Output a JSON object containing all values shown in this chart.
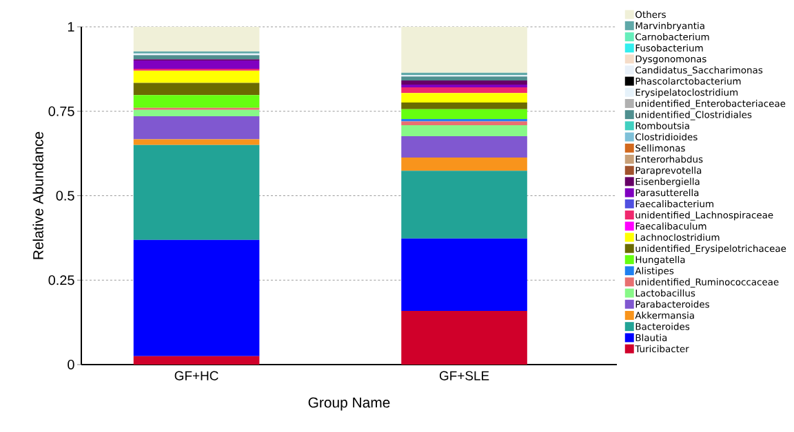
{
  "chart_data": {
    "type": "bar",
    "stacked": true,
    "xlabel": "Group Name",
    "ylabel": "Relative Abundance",
    "categories": [
      "GF+HC",
      "GF+SLE"
    ],
    "ylim": [
      0,
      1
    ],
    "yticks": [
      0,
      0.25,
      0.5,
      0.75,
      1
    ],
    "grid": "y",
    "legend": "right",
    "series": [
      {
        "name": "Turicibacter",
        "color": "#d0002a",
        "values": [
          0.025,
          0.159
        ]
      },
      {
        "name": "Blautia",
        "color": "#0000ff",
        "values": [
          0.344,
          0.214
        ]
      },
      {
        "name": "Bacteroides",
        "color": "#22a396",
        "values": [
          0.281,
          0.201
        ]
      },
      {
        "name": "Akkermansia",
        "color": "#f8941c",
        "values": [
          0.017,
          0.039
        ]
      },
      {
        "name": "Parabacteroides",
        "color": "#8058d0",
        "values": [
          0.068,
          0.063
        ]
      },
      {
        "name": "Lactobacillus",
        "color": "#88f888",
        "values": [
          0.019,
          0.033
        ]
      },
      {
        "name": "unidentified_Ruminococcaceae",
        "color": "#e87070",
        "values": [
          0.006,
          0.011
        ]
      },
      {
        "name": "Alistipes",
        "color": "#2080f0",
        "values": [
          0,
          0.007
        ]
      },
      {
        "name": "Hungatella",
        "color": "#66ff11",
        "values": [
          0.038,
          0.029
        ]
      },
      {
        "name": "unidentified_Erysipelotrichaceae",
        "color": "#6b6b00",
        "values": [
          0.036,
          0.02
        ]
      },
      {
        "name": "Lachnoclostridium",
        "color": "#ffff00",
        "values": [
          0.036,
          0.028
        ]
      },
      {
        "name": "Faecalibaculum",
        "color": "#ff00ff",
        "values": [
          0,
          0
        ]
      },
      {
        "name": "unidentified_Lachnospiraceae",
        "color": "#f0286e",
        "values": [
          0.006,
          0.017
        ]
      },
      {
        "name": "Faecalibacterium",
        "color": "#5050e0",
        "values": [
          0,
          0
        ]
      },
      {
        "name": "Parasutterella",
        "color": "#8000c0",
        "values": [
          0.024,
          0.008
        ]
      },
      {
        "name": "Eisenbergiella",
        "color": "#660066",
        "values": [
          0.004,
          0.012
        ]
      },
      {
        "name": "Paraprevotella",
        "color": "#a0522d",
        "values": [
          0,
          0
        ]
      },
      {
        "name": "Enterorhabdus",
        "color": "#c8a078",
        "values": [
          0,
          0
        ]
      },
      {
        "name": "Sellimonas",
        "color": "#d2691e",
        "values": [
          0,
          0
        ]
      },
      {
        "name": "Clostridioides",
        "color": "#7ec0d8",
        "values": [
          0,
          0
        ]
      },
      {
        "name": "Romboutsia",
        "color": "#40d0c0",
        "values": [
          0,
          0
        ]
      },
      {
        "name": "unidentified_Clostridiales",
        "color": "#4f8f8f",
        "values": [
          0.012,
          0.012
        ]
      },
      {
        "name": "unidentified_Enterobacteriaceae",
        "color": "#b0b0b0",
        "values": [
          0,
          0
        ]
      },
      {
        "name": "Erysipelatoclostridium",
        "color": "#e6f2fa",
        "values": [
          0.005,
          0.004
        ]
      },
      {
        "name": "Phascolarctobacterium",
        "color": "#000000",
        "values": [
          0,
          0
        ]
      },
      {
        "name": "Candidatus_Saccharimonas",
        "color": "#e8f0f8",
        "values": [
          0,
          0
        ]
      },
      {
        "name": "Dysgonomonas",
        "color": "#f5dcc8",
        "values": [
          0,
          0
        ]
      },
      {
        "name": "Fusobacterium",
        "color": "#33eeee",
        "values": [
          0,
          0
        ]
      },
      {
        "name": "Carnobacterium",
        "color": "#66eebb",
        "values": [
          0,
          0
        ]
      },
      {
        "name": "Marvinbryantia",
        "color": "#5fa8a8",
        "values": [
          0.006,
          0.007
        ]
      },
      {
        "name": "Others",
        "color": "#f0f0d8",
        "values": [
          0.073,
          0.136
        ]
      }
    ]
  }
}
